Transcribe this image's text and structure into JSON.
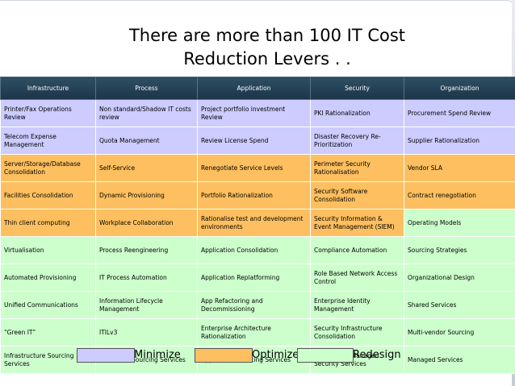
{
  "slide": {
    "title_line1": "There are more than 100 IT Cost",
    "title_line2": "Reduction Levers . .",
    "page_number": ""
  },
  "colors": {
    "minimize": "#ccccff",
    "optimize": "#fdbf5f",
    "redesign": "#ccffcc",
    "header": "#1f3a4f"
  },
  "table": {
    "headers": [
      "Infrastructure",
      "Process",
      "Application",
      "Security",
      "Organization"
    ],
    "rows": [
      [
        {
          "text": "Printer/Fax Operations Review",
          "status": "minimize"
        },
        {
          "text": "Non standard/Shadow IT costs review",
          "status": "minimize"
        },
        {
          "text": "Project portfolio investment Review",
          "status": "minimize"
        },
        {
          "text": "PKI Rationalization",
          "status": "minimize"
        },
        {
          "text": "Procurement Spend Review",
          "status": "minimize"
        }
      ],
      [
        {
          "text": "Telecom Expense Management",
          "status": "minimize"
        },
        {
          "text": "Quota Management",
          "status": "minimize"
        },
        {
          "text": "Review License Spend",
          "status": "minimize"
        },
        {
          "text": "Disaster Recovery Re-Prioritization",
          "status": "minimize"
        },
        {
          "text": "Supplier Rationalization",
          "status": "minimize"
        }
      ],
      [
        {
          "text": "Server/Storage/Database Consolidation",
          "status": "optimize"
        },
        {
          "text": "Self-Service",
          "status": "optimize"
        },
        {
          "text": "Renegotiate Service Levels",
          "status": "optimize"
        },
        {
          "text": "Perimeter Security Rationalisation",
          "status": "optimize"
        },
        {
          "text": "Vendor SLA",
          "status": "optimize"
        }
      ],
      [
        {
          "text": "Facilities Consolidation",
          "status": "optimize"
        },
        {
          "text": "Dynamic Provisioning",
          "status": "optimize"
        },
        {
          "text": "Portfolio Rationalization",
          "status": "optimize"
        },
        {
          "text": "Security Software Consolidation",
          "status": "optimize"
        },
        {
          "text": "Contract renegotiation",
          "status": "optimize"
        }
      ],
      [
        {
          "text": "Thin client computing",
          "status": "optimize"
        },
        {
          "text": "Workplace Collaboration",
          "status": "optimize"
        },
        {
          "text": "Rationalise test and development environments",
          "status": "optimize"
        },
        {
          "text": "Security Information & Event Management (SIEM)",
          "status": "optimize"
        },
        {
          "text": "Operating Models",
          "status": "redesign"
        }
      ],
      [
        {
          "text": "Virtualisation",
          "status": "redesign"
        },
        {
          "text": "Process Reengineering",
          "status": "redesign"
        },
        {
          "text": "Application Consolidation",
          "status": "redesign"
        },
        {
          "text": "Compliance Automation",
          "status": "redesign"
        },
        {
          "text": "Sourcing Strategies",
          "status": "redesign"
        }
      ],
      [
        {
          "text": "Automated Provisioning",
          "status": "redesign"
        },
        {
          "text": "IT Process Automation",
          "status": "redesign"
        },
        {
          "text": "Application Replatforming",
          "status": "redesign"
        },
        {
          "text": "Role Based Network Access Control",
          "status": "redesign"
        },
        {
          "text": "Organizational Design",
          "status": "redesign"
        }
      ],
      [
        {
          "text": "Unified Communications",
          "status": "redesign"
        },
        {
          "text": "Information Lifecycle Management",
          "status": "redesign"
        },
        {
          "text": "App Refactoring and Decommissioning",
          "status": "redesign"
        },
        {
          "text": "Enterprise Identity Management",
          "status": "redesign"
        },
        {
          "text": "Shared Services",
          "status": "redesign"
        }
      ],
      [
        {
          "text": "“Green IT”",
          "status": "redesign"
        },
        {
          "text": "ITILv3",
          "status": "redesign"
        },
        {
          "text": "Enterprise Architecture Rationalization",
          "status": "redesign"
        },
        {
          "text": "Security Infrastructure Consolidation",
          "status": "redesign"
        },
        {
          "text": "Multi-vendor Sourcing",
          "status": "redesign"
        }
      ],
      [
        {
          "text": "Infrastructure Sourcing Services",
          "status": "redesign"
        },
        {
          "text": "IT Process Sourcing Services",
          "status": "redesign"
        },
        {
          "text": "Application Sourcing Services",
          "status": "redesign"
        },
        {
          "text": "Outsourced/Managed Security Services",
          "status": "redesign"
        },
        {
          "text": "Managed Services",
          "status": "redesign"
        }
      ]
    ]
  },
  "legend": [
    {
      "label": "Minimize",
      "status": "minimize"
    },
    {
      "label": "Optimize",
      "status": "optimize"
    },
    {
      "label": "Redesign",
      "status": "redesign"
    }
  ]
}
